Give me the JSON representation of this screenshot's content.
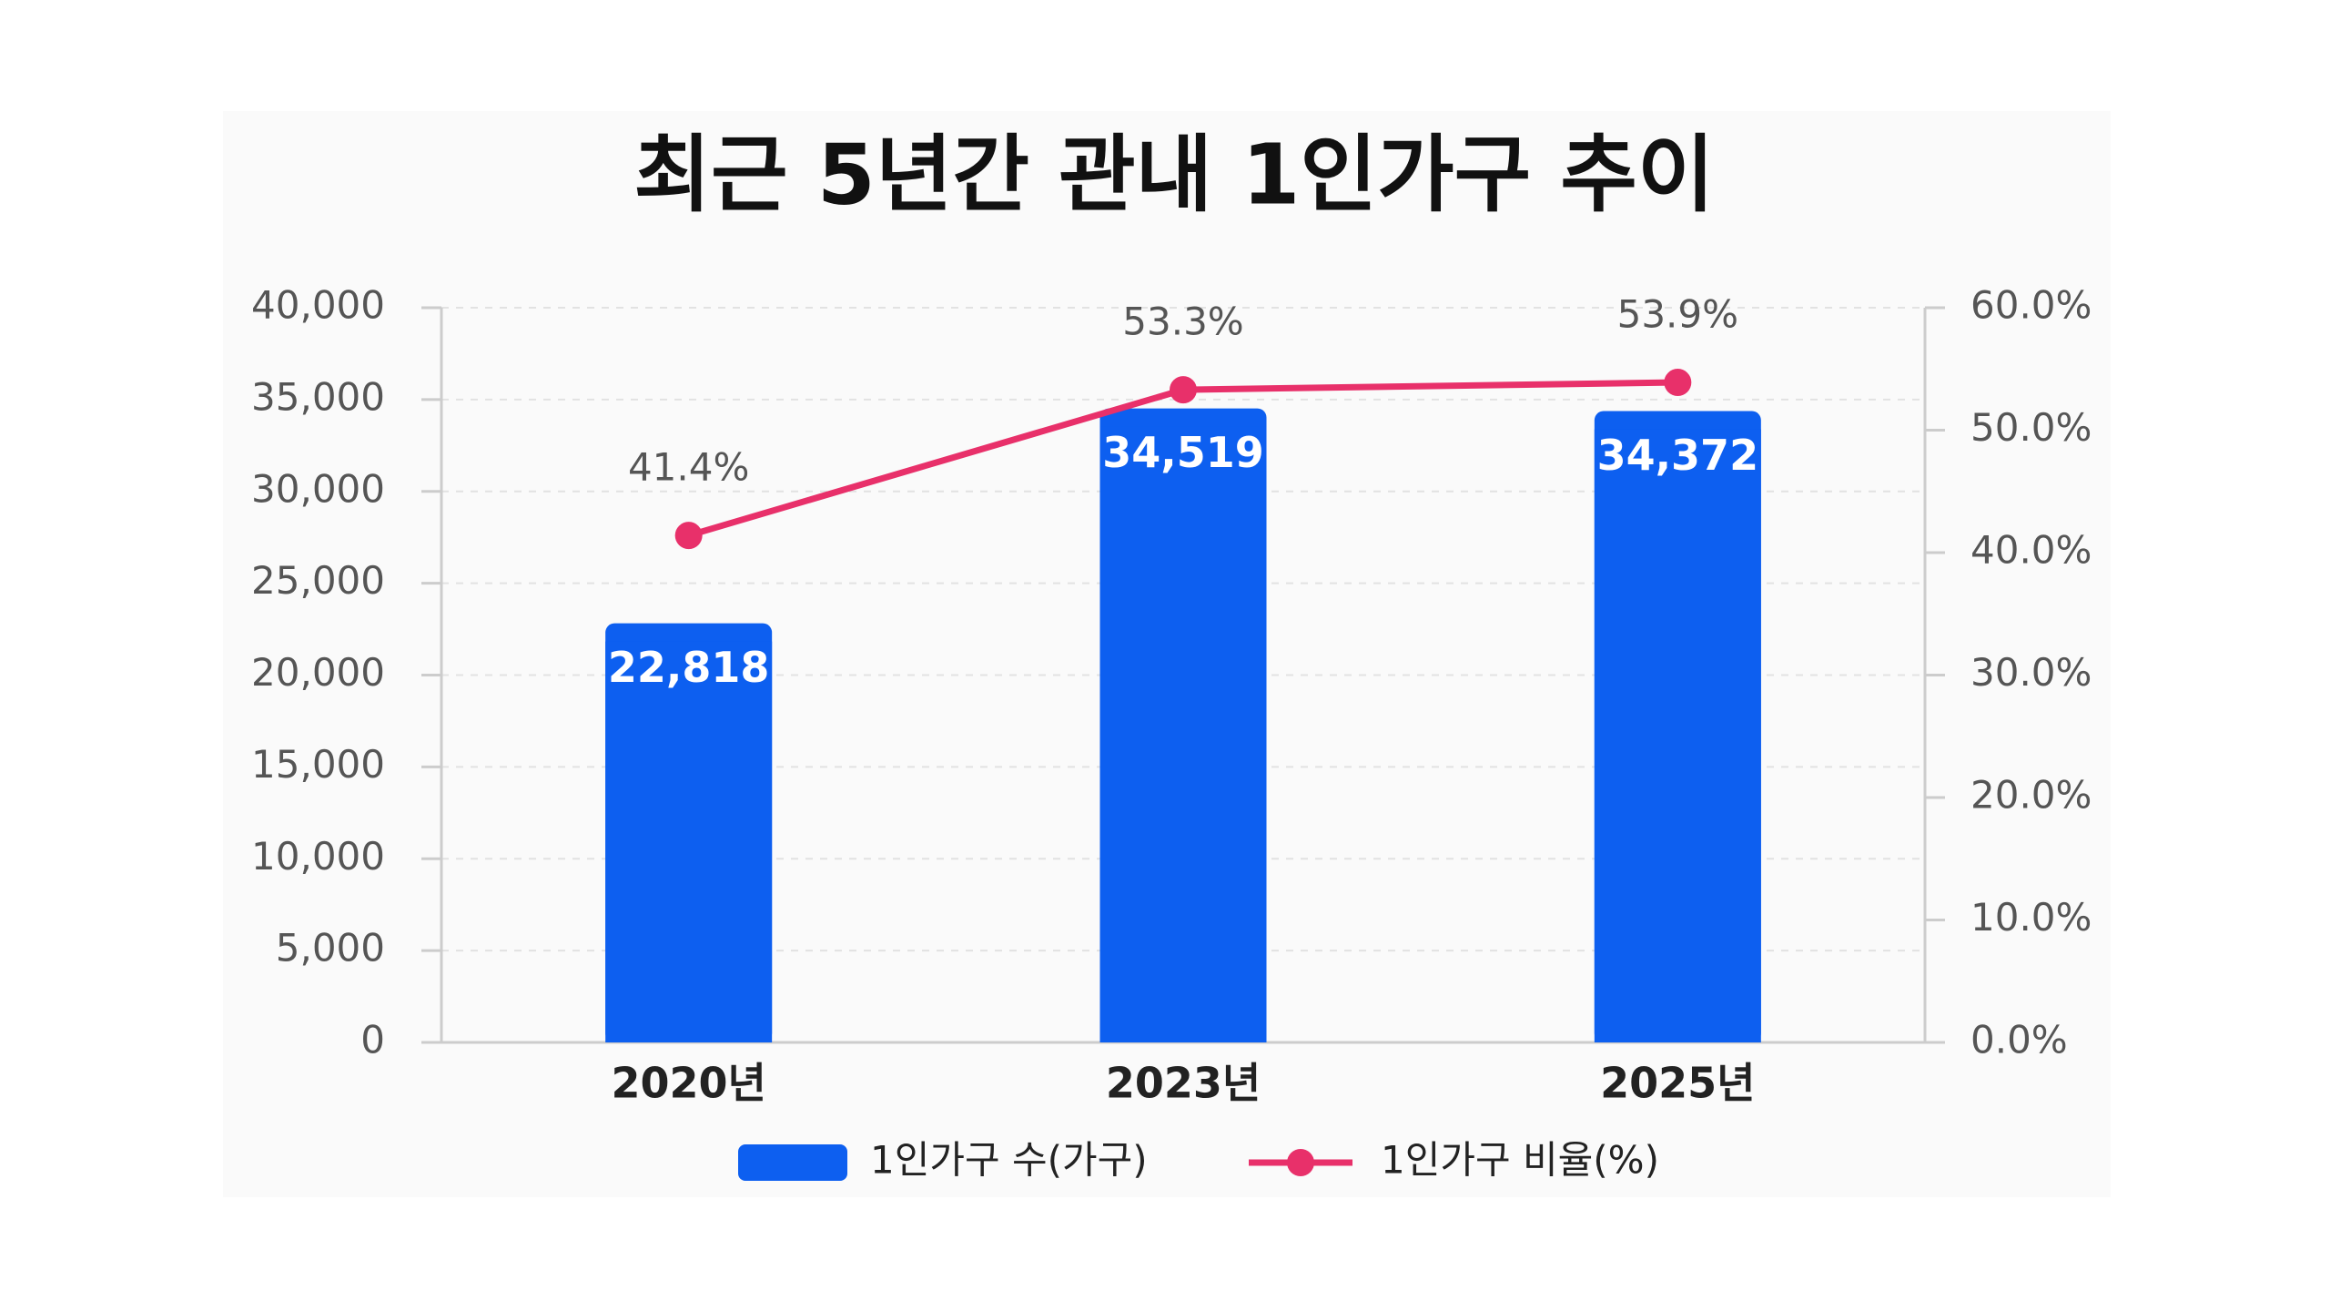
{
  "chart_data": {
    "type": "bar",
    "title": "최근 5년간 관내 1인가구 추이",
    "categories": [
      "2020년",
      "2023년",
      "2025년"
    ],
    "series": [
      {
        "name": "1인가구 수(가구)",
        "color": "#0d5ff0",
        "values": [
          22818,
          34519,
          34372
        ],
        "value_labels": [
          "22,818",
          "34,519",
          "34,372"
        ]
      },
      {
        "name": "1인가구 비율(%)",
        "type": "line",
        "axis": "y2",
        "color": "#e8306a",
        "values": [
          41.4,
          53.3,
          53.9
        ],
        "value_labels": [
          "41.4%",
          "53.3%",
          "53.9%"
        ]
      }
    ],
    "ylim": [
      0,
      40000
    ],
    "yticks": [
      {
        "value": 0,
        "label": "0"
      },
      {
        "value": 5000,
        "label": "5,000"
      },
      {
        "value": 10000,
        "label": "10,000"
      },
      {
        "value": 15000,
        "label": "15,000"
      },
      {
        "value": 20000,
        "label": "20,000"
      },
      {
        "value": 25000,
        "label": "25,000"
      },
      {
        "value": 30000,
        "label": "30,000"
      },
      {
        "value": 35000,
        "label": "35,000"
      },
      {
        "value": 40000,
        "label": "40,000"
      }
    ],
    "y2lim": [
      0,
      60
    ],
    "y2ticks": [
      {
        "value": 0,
        "label": "0.0%"
      },
      {
        "value": 10,
        "label": "10.0%"
      },
      {
        "value": 20,
        "label": "20.0%"
      },
      {
        "value": 30,
        "label": "30.0%"
      },
      {
        "value": 40,
        "label": "40.0%"
      },
      {
        "value": 50,
        "label": "50.0%"
      },
      {
        "value": 60,
        "label": "60.0%"
      }
    ],
    "grid": true,
    "legend": "bottom"
  }
}
